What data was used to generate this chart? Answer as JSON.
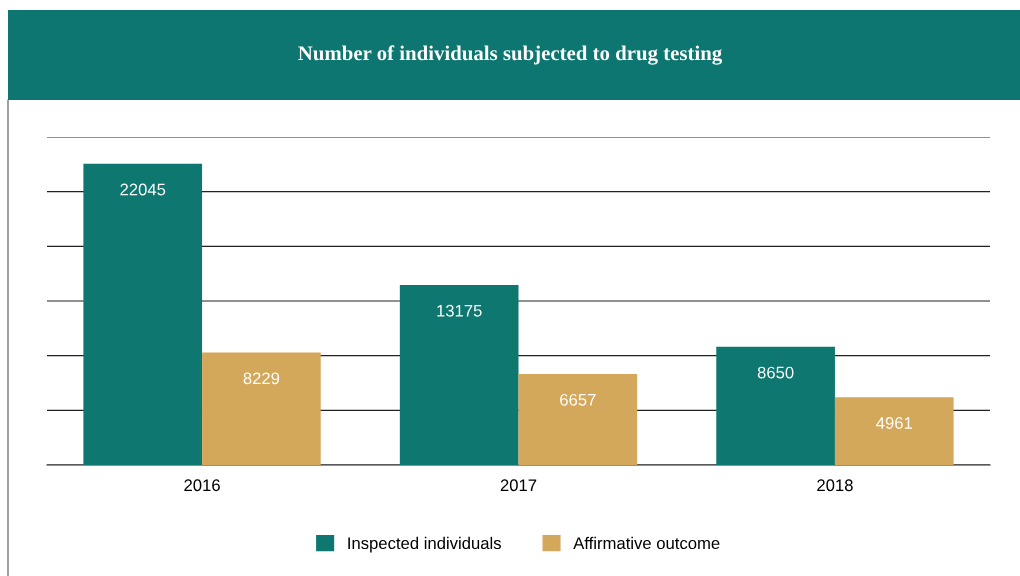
{
  "chart_data": {
    "type": "bar",
    "title": "Number of individuals subjected to drug testing",
    "categories": [
      "2016",
      "2017",
      "2018"
    ],
    "series": [
      {
        "name": "Inspected individuals",
        "color": "#0e7770",
        "values": [
          22045,
          13175,
          8650
        ]
      },
      {
        "name": "Affirmative outcome",
        "color": "#d4a85a",
        "values": [
          8229,
          6657,
          4961
        ]
      }
    ],
    "ylim": [
      0,
      24000
    ],
    "yticks": [
      {
        "value": 0,
        "label": null
      },
      {
        "value": 4000,
        "label": null
      },
      {
        "value": 8000,
        "label": null
      },
      {
        "value": 12000,
        "label": null
      },
      {
        "value": 16000,
        "label": null
      },
      {
        "value": 20000,
        "label": null
      },
      {
        "value": 24000,
        "label": null
      }
    ],
    "tick_labels": "x",
    "grid": "y",
    "legend": "bottom",
    "data_labels": true
  }
}
